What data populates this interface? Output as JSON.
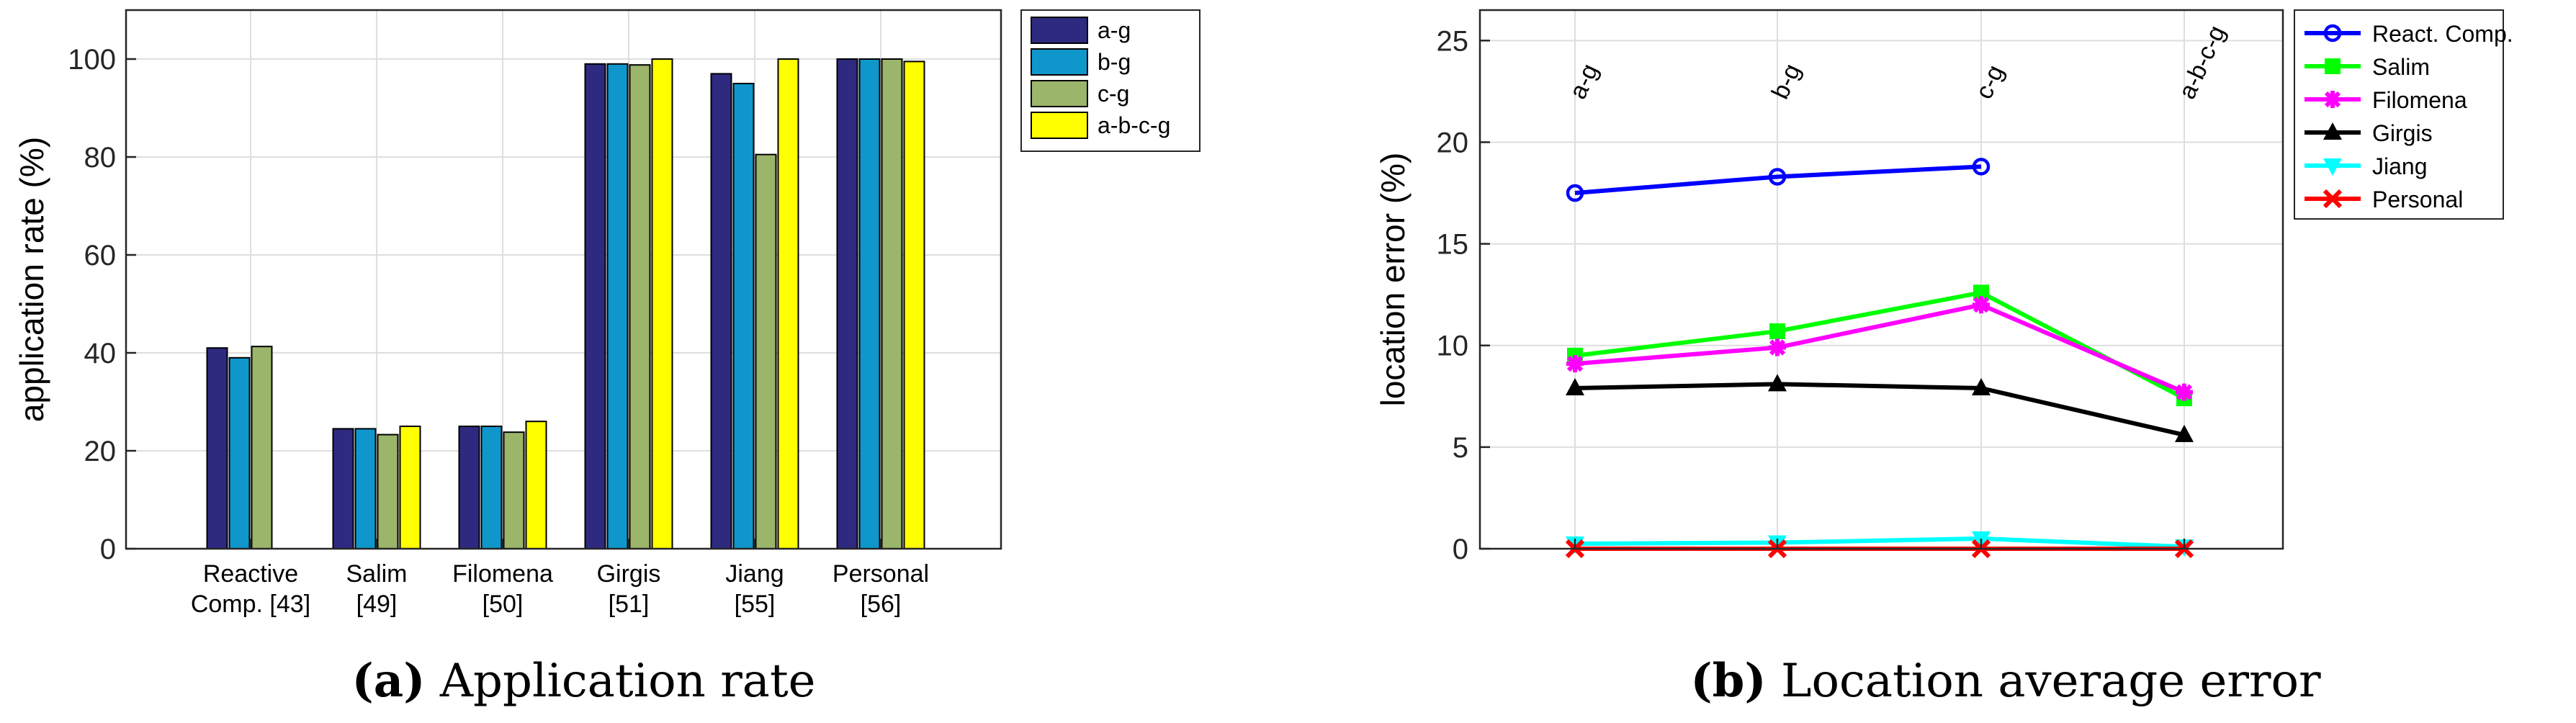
{
  "chart_data": [
    {
      "type": "bar",
      "caption_tag": "(a)",
      "caption_text": "Application rate",
      "ylabel": "application rate (%)",
      "ylim": [
        0,
        110
      ],
      "yticks": [
        0,
        20,
        40,
        60,
        80,
        100
      ],
      "grid": true,
      "legend_placement": "outside-top-right",
      "categories": [
        [
          "Reactive",
          "Comp. [43]"
        ],
        [
          "Salim",
          "[49]"
        ],
        [
          "Filomena",
          "[50]"
        ],
        [
          "Girgis",
          "[51]"
        ],
        [
          "Jiang",
          "[55]"
        ],
        [
          "Personal",
          "[56]"
        ]
      ],
      "series": [
        {
          "name": "a-g",
          "color": "#2e2a80",
          "values": [
            41,
            24.5,
            25,
            99,
            97,
            100
          ]
        },
        {
          "name": "b-g",
          "color": "#0f97cc",
          "values": [
            39,
            24.5,
            25,
            99,
            95,
            100
          ]
        },
        {
          "name": "c-g",
          "color": "#9bb56b",
          "values": [
            41.3,
            23.3,
            23.8,
            98.8,
            80.5,
            100
          ]
        },
        {
          "name": "a-b-c-g",
          "color": "#ffff00",
          "values": [
            null,
            25,
            26,
            100,
            100,
            99.5
          ]
        }
      ]
    },
    {
      "type": "line",
      "caption_tag": "(b)",
      "caption_text": "Location average error",
      "ylabel": "location error (%)",
      "ylim": [
        0,
        26.5
      ],
      "yticks": [
        0,
        5,
        10,
        15,
        20,
        25
      ],
      "grid": true,
      "legend_placement": "outside-top-right",
      "x_labels": [
        "a-g",
        "b-g",
        "c-g",
        "a-b-c-g"
      ],
      "series": [
        {
          "name": "React. Comp.",
          "color": "#0000ff",
          "marker": "circle",
          "values": [
            17.5,
            18.3,
            18.8,
            null
          ]
        },
        {
          "name": "Salim",
          "color": "#00ff00",
          "marker": "square",
          "values": [
            9.5,
            10.7,
            12.6,
            7.4
          ]
        },
        {
          "name": "Filomena",
          "color": "#ff00ff",
          "marker": "asterisk",
          "values": [
            9.1,
            9.9,
            12.0,
            7.7
          ]
        },
        {
          "name": "Girgis",
          "color": "#000000",
          "marker": "triangle-up",
          "values": [
            7.9,
            8.1,
            7.9,
            5.6
          ]
        },
        {
          "name": "Jiang",
          "color": "#00ffff",
          "marker": "triangle-down",
          "values": [
            0.25,
            0.3,
            0.5,
            0.1
          ]
        },
        {
          "name": "Personal",
          "color": "#ff0000",
          "marker": "x",
          "values": [
            0,
            0,
            0,
            0
          ]
        }
      ]
    }
  ]
}
